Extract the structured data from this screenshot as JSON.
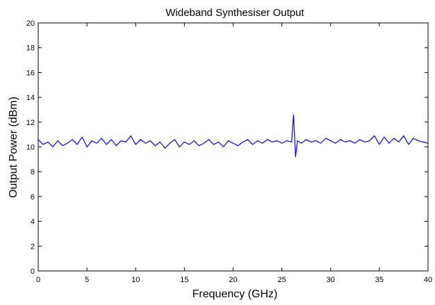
{
  "chart_data": {
    "type": "line",
    "title": "Wideband Synthesiser Output",
    "xlabel": "Frequency (GHz)",
    "ylabel": "Output Power (dBm)",
    "xlim": [
      0,
      40
    ],
    "ylim": [
      0,
      20
    ],
    "xticks": [
      0,
      5,
      10,
      15,
      20,
      25,
      30,
      35,
      40
    ],
    "yticks": [
      0,
      2,
      4,
      6,
      8,
      10,
      12,
      14,
      16,
      18,
      20
    ],
    "grid": false,
    "legend": "none",
    "series": [
      {
        "color": "#0000ff",
        "x": [
          0,
          0.5,
          1,
          1.5,
          2,
          2.5,
          3,
          3.5,
          4,
          4.5,
          5,
          5.5,
          6,
          6.5,
          7,
          7.5,
          8,
          8.5,
          9,
          9.5,
          10,
          10.5,
          11,
          11.5,
          12,
          12.5,
          13,
          13.5,
          14,
          14.5,
          15,
          15.5,
          16,
          16.5,
          17,
          17.5,
          18,
          18.5,
          19,
          19.5,
          20,
          20.5,
          21,
          21.5,
          22,
          22.5,
          23,
          23.5,
          24,
          24.5,
          25,
          25.5,
          26,
          26.2,
          26.4,
          26.6,
          27,
          27.5,
          28,
          28.5,
          29,
          29.5,
          30,
          30.5,
          31,
          31.5,
          32,
          32.5,
          33,
          33.5,
          34,
          34.5,
          35,
          35.5,
          36,
          36.5,
          37,
          37.5,
          38,
          38.5,
          39,
          39.5,
          40
        ],
        "y": [
          10.6,
          10.2,
          10.4,
          10.0,
          10.5,
          10.1,
          10.3,
          10.6,
          10.2,
          10.8,
          10.0,
          10.5,
          10.3,
          10.7,
          10.2,
          10.6,
          10.1,
          10.5,
          10.4,
          10.9,
          10.2,
          10.6,
          10.3,
          10.5,
          10.1,
          10.4,
          9.9,
          10.3,
          10.6,
          10.0,
          10.4,
          10.2,
          10.5,
          10.1,
          10.3,
          10.6,
          10.2,
          10.4,
          10.0,
          10.5,
          10.3,
          10.1,
          10.4,
          10.6,
          10.2,
          10.5,
          10.3,
          10.6,
          10.4,
          10.5,
          10.3,
          10.5,
          10.4,
          12.6,
          9.2,
          10.5,
          10.3,
          10.6,
          10.4,
          10.5,
          10.3,
          10.7,
          10.5,
          10.3,
          10.6,
          10.4,
          10.5,
          10.3,
          10.6,
          10.4,
          10.5,
          10.9,
          10.2,
          10.8,
          10.3,
          10.7,
          10.4,
          10.9,
          10.2,
          10.7,
          10.5,
          10.4,
          10.3
        ]
      }
    ]
  }
}
